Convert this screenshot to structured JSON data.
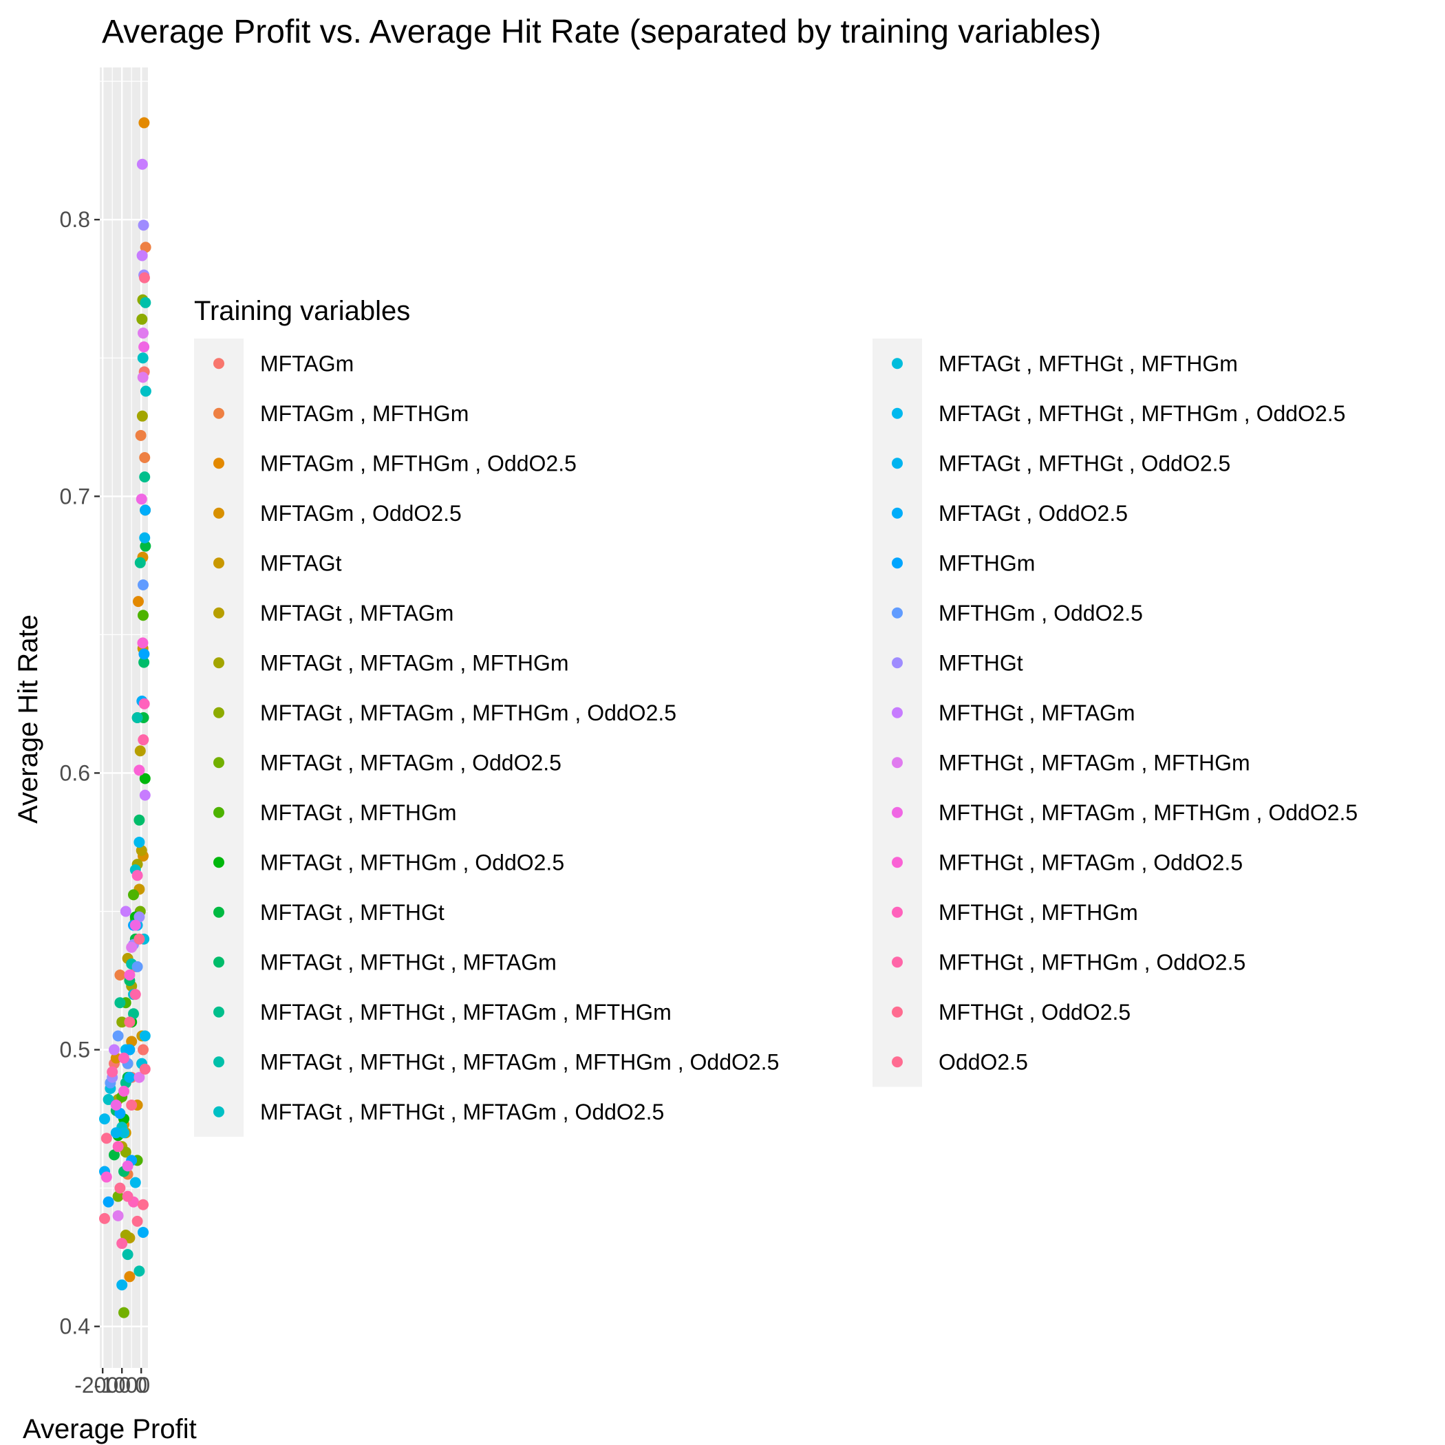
{
  "chart_data": {
    "type": "scatter",
    "title": "Average Profit vs. Average Hit Rate (separated by training variables)",
    "xlabel": "Average Profit",
    "ylabel": "Average Hit Rate",
    "x_ticks": [
      "-2000",
      "-1000",
      "0"
    ],
    "y_ticks": [
      "0.4",
      "0.5",
      "0.6",
      "0.7",
      "0.8"
    ],
    "xlim": [
      -2150,
      350
    ],
    "ylim": [
      0.385,
      0.855
    ],
    "grid": true,
    "legend": {
      "title": "Training variables",
      "placement": "right",
      "columns": 2
    },
    "series": [
      {
        "name": "MFTAGm",
        "color": "#F8766D",
        "points": [
          [
            160,
            0.745
          ],
          [
            -1400,
            0.495
          ],
          [
            -300,
            0.53
          ],
          [
            100,
            0.5
          ],
          [
            -500,
            0.49
          ]
        ]
      },
      {
        "name": "MFTAGm , MFTHGm",
        "color": "#EE8043",
        "points": [
          [
            230,
            0.79
          ],
          [
            -20,
            0.722
          ],
          [
            180,
            0.714
          ],
          [
            -1100,
            0.527
          ],
          [
            -700,
            0.455
          ]
        ]
      },
      {
        "name": "MFTAGm , MFTHGm , OddO2.5",
        "color": "#E38900",
        "points": [
          [
            150,
            0.835
          ],
          [
            210,
            0.695
          ],
          [
            -150,
            0.662
          ],
          [
            -600,
            0.418
          ],
          [
            -900,
            0.473
          ]
        ]
      },
      {
        "name": "MFTAGm , OddO2.5",
        "color": "#D89000",
        "points": [
          [
            80,
            0.678
          ],
          [
            100,
            0.57
          ],
          [
            -500,
            0.503
          ],
          [
            -1300,
            0.497
          ],
          [
            -200,
            0.48
          ]
        ]
      },
      {
        "name": "MFTAGt",
        "color": "#C99800",
        "points": [
          [
            90,
            0.645
          ],
          [
            -100,
            0.558
          ],
          [
            -400,
            0.52
          ],
          [
            -800,
            0.47
          ],
          [
            40,
            0.505
          ]
        ]
      },
      {
        "name": "MFTAGt , MFTAGm",
        "color": "#B79F00",
        "points": [
          [
            -50,
            0.608
          ],
          [
            20,
            0.572
          ],
          [
            -700,
            0.533
          ],
          [
            -600,
            0.432
          ],
          [
            -1000,
            0.465
          ]
        ]
      },
      {
        "name": "MFTAGt , MFTAGm , MFTHGm",
        "color": "#A3A500",
        "points": [
          [
            60,
            0.729
          ],
          [
            -200,
            0.567
          ],
          [
            -500,
            0.523
          ],
          [
            -800,
            0.433
          ],
          [
            -1200,
            0.482
          ]
        ]
      },
      {
        "name": "MFTAGt , MFTAGm , MFTHGm , OddO2.5",
        "color": "#8DAB00",
        "points": [
          [
            40,
            0.764
          ],
          [
            80,
            0.771
          ],
          [
            -300,
            0.547
          ],
          [
            -1000,
            0.51
          ],
          [
            -800,
            0.463
          ]
        ]
      },
      {
        "name": "MFTAGt , MFTAGm , OddO2.5",
        "color": "#72B000",
        "points": [
          [
            -200,
            0.62
          ],
          [
            -50,
            0.55
          ],
          [
            -900,
            0.405
          ],
          [
            -1200,
            0.447
          ],
          [
            -700,
            0.495
          ]
        ]
      },
      {
        "name": "MFTAGt , MFTHGm",
        "color": "#4DB300",
        "points": [
          [
            100,
            0.657
          ],
          [
            -400,
            0.556
          ],
          [
            -800,
            0.517
          ],
          [
            -1000,
            0.483
          ],
          [
            -200,
            0.46
          ]
        ]
      },
      {
        "name": "MFTAGt , MFTHGm , OddO2.5",
        "color": "#00B70C",
        "points": [
          [
            200,
            0.598
          ],
          [
            -300,
            0.548
          ],
          [
            -900,
            0.475
          ],
          [
            -1200,
            0.469
          ],
          [
            -500,
            0.51
          ]
        ]
      },
      {
        "name": "MFTAGt , MFTHGt",
        "color": "#00BA42",
        "points": [
          [
            220,
            0.682
          ],
          [
            120,
            0.62
          ],
          [
            -300,
            0.54
          ],
          [
            -700,
            0.49
          ],
          [
            -1400,
            0.462
          ]
        ]
      },
      {
        "name": "MFTAGt , MFTHGt , MFTAGm",
        "color": "#00BC6A",
        "points": [
          [
            140,
            0.64
          ],
          [
            -100,
            0.583
          ],
          [
            -600,
            0.525
          ],
          [
            -900,
            0.456
          ],
          [
            -1300,
            0.478
          ]
        ]
      },
      {
        "name": "MFTAGt , MFTHGt , MFTAGm , MFTHGm",
        "color": "#00BF8C",
        "points": [
          [
            180,
            0.707
          ],
          [
            -50,
            0.676
          ],
          [
            -400,
            0.513
          ],
          [
            -800,
            0.488
          ],
          [
            -1100,
            0.517
          ]
        ]
      },
      {
        "name": "MFTAGt , MFTHGt , MFTAGm , MFTHGm , OddO2.5",
        "color": "#00C0AA",
        "points": [
          [
            220,
            0.77
          ],
          [
            -200,
            0.62
          ],
          [
            -500,
            0.531
          ],
          [
            -700,
            0.426
          ],
          [
            -100,
            0.42
          ]
        ]
      },
      {
        "name": "MFTAGt , MFTHGt , MFTAGm , OddO2.5",
        "color": "#00C0C5",
        "points": [
          [
            240,
            0.738
          ],
          [
            90,
            0.75
          ],
          [
            -300,
            0.565
          ],
          [
            -1000,
            0.472
          ],
          [
            -1700,
            0.482
          ]
        ]
      },
      {
        "name": "MFTAGt , MFTHGt , MFTHGm",
        "color": "#00BDDC",
        "points": [
          [
            140,
            0.54
          ],
          [
            -900,
            0.47
          ],
          [
            -1600,
            0.486
          ],
          [
            -400,
            0.52
          ],
          [
            30,
            0.495
          ]
        ]
      },
      {
        "name": "MFTAGt , MFTHGt , MFTHGm , OddO2.5",
        "color": "#00B9EE",
        "points": [
          [
            -100,
            0.575
          ],
          [
            -1900,
            0.475
          ],
          [
            -800,
            0.5
          ],
          [
            -300,
            0.452
          ],
          [
            200,
            0.505
          ]
        ]
      },
      {
        "name": "MFTAGt , MFTHGt , OddO2.5",
        "color": "#00B4F0",
        "points": [
          [
            180,
            0.685
          ],
          [
            -200,
            0.545
          ],
          [
            -1300,
            0.47
          ],
          [
            -1000,
            0.415
          ],
          [
            -600,
            0.49
          ]
        ]
      },
      {
        "name": "MFTAGt , OddO2.5",
        "color": "#00ADFA",
        "points": [
          [
            210,
            0.695
          ],
          [
            40,
            0.626
          ],
          [
            -600,
            0.5
          ],
          [
            -1900,
            0.456
          ],
          [
            100,
            0.434
          ]
        ]
      },
      {
        "name": "MFTHGm",
        "color": "#00A5FF",
        "points": [
          [
            150,
            0.643
          ],
          [
            -400,
            0.545
          ],
          [
            -1100,
            0.477
          ],
          [
            -1700,
            0.445
          ],
          [
            -500,
            0.46
          ]
        ]
      },
      {
        "name": "MFTHGm , OddO2.5",
        "color": "#619CFF",
        "points": [
          [
            100,
            0.668
          ],
          [
            -1200,
            0.505
          ],
          [
            -200,
            0.53
          ],
          [
            -1600,
            0.488
          ],
          [
            -700,
            0.495
          ]
        ]
      },
      {
        "name": "MFTHGt",
        "color": "#9F8CFF",
        "points": [
          [
            120,
            0.798
          ],
          [
            140,
            0.78
          ],
          [
            -100,
            0.548
          ],
          [
            -400,
            0.538
          ],
          [
            -1500,
            0.49
          ]
        ]
      },
      {
        "name": "MFTHGt , MFTAGm",
        "color": "#C77CFF",
        "points": [
          [
            60,
            0.82
          ],
          [
            50,
            0.787
          ],
          [
            200,
            0.592
          ],
          [
            -800,
            0.55
          ],
          [
            -1400,
            0.5
          ]
        ]
      },
      {
        "name": "MFTHGt , MFTAGm , MFTHGm",
        "color": "#E07BEF",
        "points": [
          [
            100,
            0.759
          ],
          [
            90,
            0.743
          ],
          [
            -500,
            0.537
          ],
          [
            -1200,
            0.44
          ],
          [
            -100,
            0.49
          ]
        ]
      },
      {
        "name": "MFTHGt , MFTAGm , MFTHGm , OddO2.5",
        "color": "#F067E4",
        "points": [
          [
            140,
            0.754
          ],
          [
            20,
            0.699
          ],
          [
            -300,
            0.545
          ],
          [
            -700,
            0.458
          ],
          [
            -1300,
            0.48
          ]
        ]
      },
      {
        "name": "MFTHGt , MFTAGm , OddO2.5",
        "color": "#FA62D5",
        "points": [
          [
            80,
            0.647
          ],
          [
            -100,
            0.601
          ],
          [
            -600,
            0.527
          ],
          [
            -900,
            0.485
          ],
          [
            -1800,
            0.454
          ]
        ]
      },
      {
        "name": "MFTHGt , MFTHGm",
        "color": "#FF62BC",
        "points": [
          [
            160,
            0.625
          ],
          [
            -200,
            0.563
          ],
          [
            -900,
            0.497
          ],
          [
            -400,
            0.445
          ],
          [
            -1200,
            0.465
          ]
        ]
      },
      {
        "name": "MFTHGt , MFTHGm , OddO2.5",
        "color": "#FF66A8",
        "points": [
          [
            110,
            0.612
          ],
          [
            -300,
            0.52
          ],
          [
            -700,
            0.447
          ],
          [
            -1000,
            0.43
          ],
          [
            -1500,
            0.492
          ]
        ]
      },
      {
        "name": "MFTHGt , OddO2.5",
        "color": "#FF6C90",
        "points": [
          [
            170,
            0.779
          ],
          [
            -100,
            0.54
          ],
          [
            -500,
            0.48
          ],
          [
            -200,
            0.438
          ],
          [
            -1900,
            0.439
          ]
        ]
      },
      {
        "name": "OddO2.5",
        "color": "#FF6C91",
        "points": [
          [
            200,
            0.493
          ],
          [
            -600,
            0.51
          ],
          [
            -1100,
            0.45
          ],
          [
            -1800,
            0.468
          ],
          [
            100,
            0.444
          ]
        ]
      }
    ]
  }
}
